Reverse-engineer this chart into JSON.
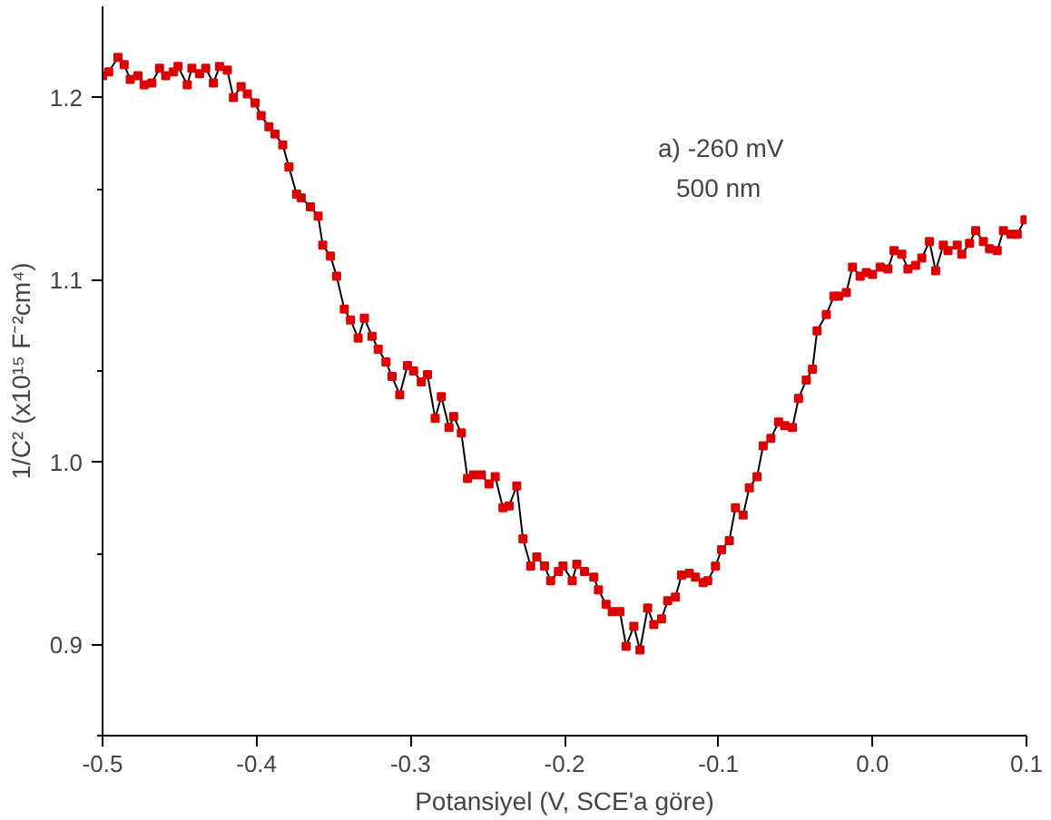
{
  "chart_data": {
    "type": "line",
    "xlabel": "Potansiyel (V, SCE'a göre)",
    "ylabel": "1/C² (x10¹⁵ F⁻²cm⁴)",
    "annotations": [
      "a) -260 mV",
      "500 nm"
    ],
    "marker": "square",
    "line_style": "solid",
    "grid": false,
    "xlim": [
      -0.5,
      0.1
    ],
    "ylim": [
      0.85,
      1.25
    ],
    "xticks": [
      -0.5,
      -0.4,
      -0.3,
      -0.2,
      -0.1,
      {
        "value": 0,
        "label": "0.0"
      },
      0.1
    ],
    "yticks": [
      {
        "value": 0.85,
        "label": null
      },
      0.9,
      {
        "value": 0.95,
        "label": null
      },
      {
        "value": 1.0,
        "label": "1.0"
      },
      {
        "value": 1.05,
        "label": null
      },
      1.1,
      {
        "value": 1.15,
        "label": null
      },
      1.2
    ],
    "series": [
      {
        "color": "#dd0000",
        "x": [
          -0.5,
          -0.496,
          -0.49,
          -0.486,
          -0.482,
          -0.477,
          -0.473,
          -0.468,
          -0.463,
          -0.459,
          -0.454,
          -0.451,
          -0.445,
          -0.442,
          -0.437,
          -0.433,
          -0.428,
          -0.424,
          -0.419,
          -0.415,
          -0.41,
          -0.406,
          -0.401,
          -0.397,
          -0.392,
          -0.388,
          -0.383,
          -0.379,
          -0.374,
          -0.371,
          -0.365,
          -0.36,
          -0.357,
          -0.352,
          -0.348,
          -0.343,
          -0.339,
          -0.334,
          -0.33,
          -0.325,
          -0.321,
          -0.316,
          -0.312,
          -0.307,
          -0.302,
          -0.298,
          -0.293,
          -0.289,
          -0.284,
          -0.28,
          -0.275,
          -0.272,
          -0.267,
          -0.263,
          -0.259,
          -0.254,
          -0.249,
          -0.245,
          -0.24,
          -0.236,
          -0.231,
          -0.227,
          -0.222,
          -0.218,
          -0.213,
          -0.209,
          -0.204,
          -0.201,
          -0.195,
          -0.192,
          -0.187,
          -0.181,
          -0.178,
          -0.173,
          -0.169,
          -0.164,
          -0.16,
          -0.155,
          -0.151,
          -0.146,
          -0.142,
          -0.137,
          -0.133,
          -0.128,
          -0.124,
          -0.119,
          -0.115,
          -0.11,
          -0.107,
          -0.102,
          -0.098,
          -0.093,
          -0.089,
          -0.084,
          -0.08,
          -0.075,
          -0.071,
          -0.066,
          -0.061,
          -0.057,
          -0.052,
          -0.048,
          -0.043,
          -0.039,
          -0.036,
          -0.03,
          -0.025,
          -0.022,
          -0.017,
          -0.013,
          -0.008,
          -0.004,
          0.0,
          0.005,
          0.01,
          0.014,
          0.019,
          0.023,
          0.028,
          0.032,
          0.037,
          0.041,
          0.046,
          0.049,
          0.055,
          0.058,
          0.063,
          0.067,
          0.072,
          0.076,
          0.081,
          0.085,
          0.09,
          0.094,
          0.099
        ],
        "values": [
          1.212,
          1.214,
          1.222,
          1.218,
          1.21,
          1.212,
          1.207,
          1.208,
          1.216,
          1.212,
          1.214,
          1.217,
          1.207,
          1.216,
          1.213,
          1.216,
          1.208,
          1.217,
          1.215,
          1.2,
          1.206,
          1.202,
          1.197,
          1.19,
          1.184,
          1.18,
          1.174,
          1.162,
          1.147,
          1.145,
          1.14,
          1.135,
          1.119,
          1.113,
          1.102,
          1.084,
          1.078,
          1.068,
          1.079,
          1.069,
          1.062,
          1.055,
          1.047,
          1.037,
          1.053,
          1.05,
          1.044,
          1.048,
          1.024,
          1.036,
          1.019,
          1.025,
          1.016,
          0.991,
          0.993,
          0.993,
          0.988,
          0.992,
          0.975,
          0.976,
          0.987,
          0.958,
          0.943,
          0.948,
          0.943,
          0.935,
          0.94,
          0.943,
          0.935,
          0.944,
          0.94,
          0.937,
          0.93,
          0.922,
          0.918,
          0.918,
          0.899,
          0.91,
          0.897,
          0.92,
          0.911,
          0.914,
          0.924,
          0.926,
          0.938,
          0.939,
          0.937,
          0.934,
          0.935,
          0.943,
          0.952,
          0.957,
          0.975,
          0.971,
          0.986,
          0.992,
          1.009,
          1.013,
          1.022,
          1.02,
          1.019,
          1.035,
          1.045,
          1.051,
          1.072,
          1.081,
          1.091,
          1.091,
          1.093,
          1.107,
          1.102,
          1.104,
          1.103,
          1.107,
          1.106,
          1.116,
          1.114,
          1.106,
          1.108,
          1.112,
          1.121,
          1.105,
          1.119,
          1.116,
          1.119,
          1.114,
          1.12,
          1.127,
          1.121,
          1.117,
          1.116,
          1.127,
          1.125,
          1.125,
          1.133
        ]
      }
    ]
  }
}
